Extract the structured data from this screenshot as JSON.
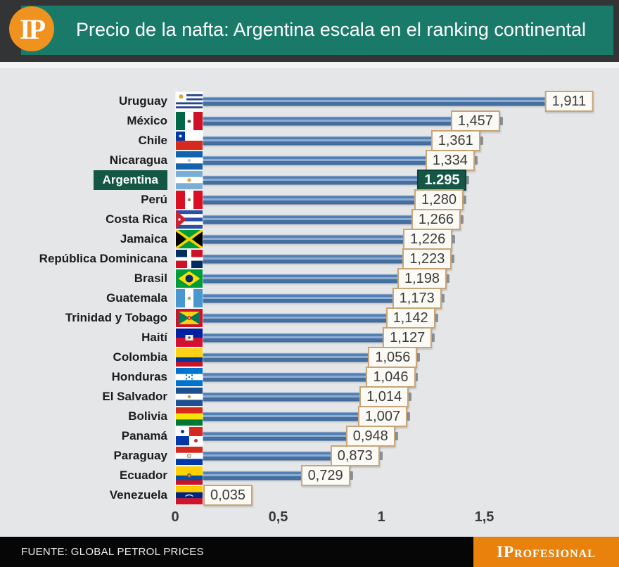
{
  "header": {
    "logo": "IP",
    "title": "Precio de la nafta: Argentina escala en el ranking continental"
  },
  "chart_data": {
    "type": "bar",
    "orientation": "horizontal",
    "title": "Precio de la nafta: Argentina escala en el ranking continental",
    "categories": [
      "Uruguay",
      "México",
      "Chile",
      "Nicaragua",
      "Argentina",
      "Perú",
      "Costa Rica",
      "Jamaica",
      "República Dominicana",
      "Brasil",
      "Guatemala",
      "Trinidad y Tobago",
      "Haití",
      "Colombia",
      "Honduras",
      "El Salvador",
      "Bolivia",
      "Panamá",
      "Paraguay",
      "Ecuador",
      "Venezuela"
    ],
    "values": [
      1.911,
      1.457,
      1.361,
      1.334,
      1.295,
      1.28,
      1.266,
      1.226,
      1.223,
      1.198,
      1.173,
      1.142,
      1.127,
      1.056,
      1.046,
      1.014,
      1.007,
      0.948,
      0.873,
      0.729,
      0.035
    ],
    "value_labels": [
      "1,911",
      "1,457",
      "1,361",
      "1,334",
      "1.295",
      "1,280",
      "1,266",
      "1,226",
      "1,223",
      "1,198",
      "1,173",
      "1,142",
      "1,127",
      "1,056",
      "1,046",
      "1,014",
      "1,007",
      "0,948",
      "0,873",
      "0,729",
      "0,035"
    ],
    "flags": [
      "uruguay",
      "mexico",
      "chile",
      "nicaragua",
      "argentina",
      "peru",
      "costa-rica",
      "jamaica",
      "dominicana",
      "brasil",
      "guatemala",
      "trinidad",
      "haiti",
      "colombia",
      "honduras",
      "el-salvador",
      "bolivia",
      "panama",
      "paraguay",
      "ecuador",
      "venezuela"
    ],
    "highlight_category": "Argentina",
    "x_ticks": [
      {
        "value": 0,
        "label": "0"
      },
      {
        "value": 0.5,
        "label": "0,5"
      },
      {
        "value": 1,
        "label": "1"
      },
      {
        "value": 1.5,
        "label": "1,5"
      }
    ],
    "xlim": [
      0,
      2.0
    ],
    "grid": false,
    "legend": false,
    "bar_color": "#4a77af",
    "highlight_color": "#145744",
    "label_box_border": "#c9a478"
  },
  "footer": {
    "source": "FUENTE: GLOBAL PETROL PRICES",
    "brand": "IProfesional"
  },
  "colors": {
    "header_teal": "#1a7a69",
    "header_frame": "#323435",
    "logo_orange": "#f0921e",
    "chart_bg": "#e4e6e7",
    "footer_black": "#060606",
    "brand_orange": "#e8820c"
  }
}
